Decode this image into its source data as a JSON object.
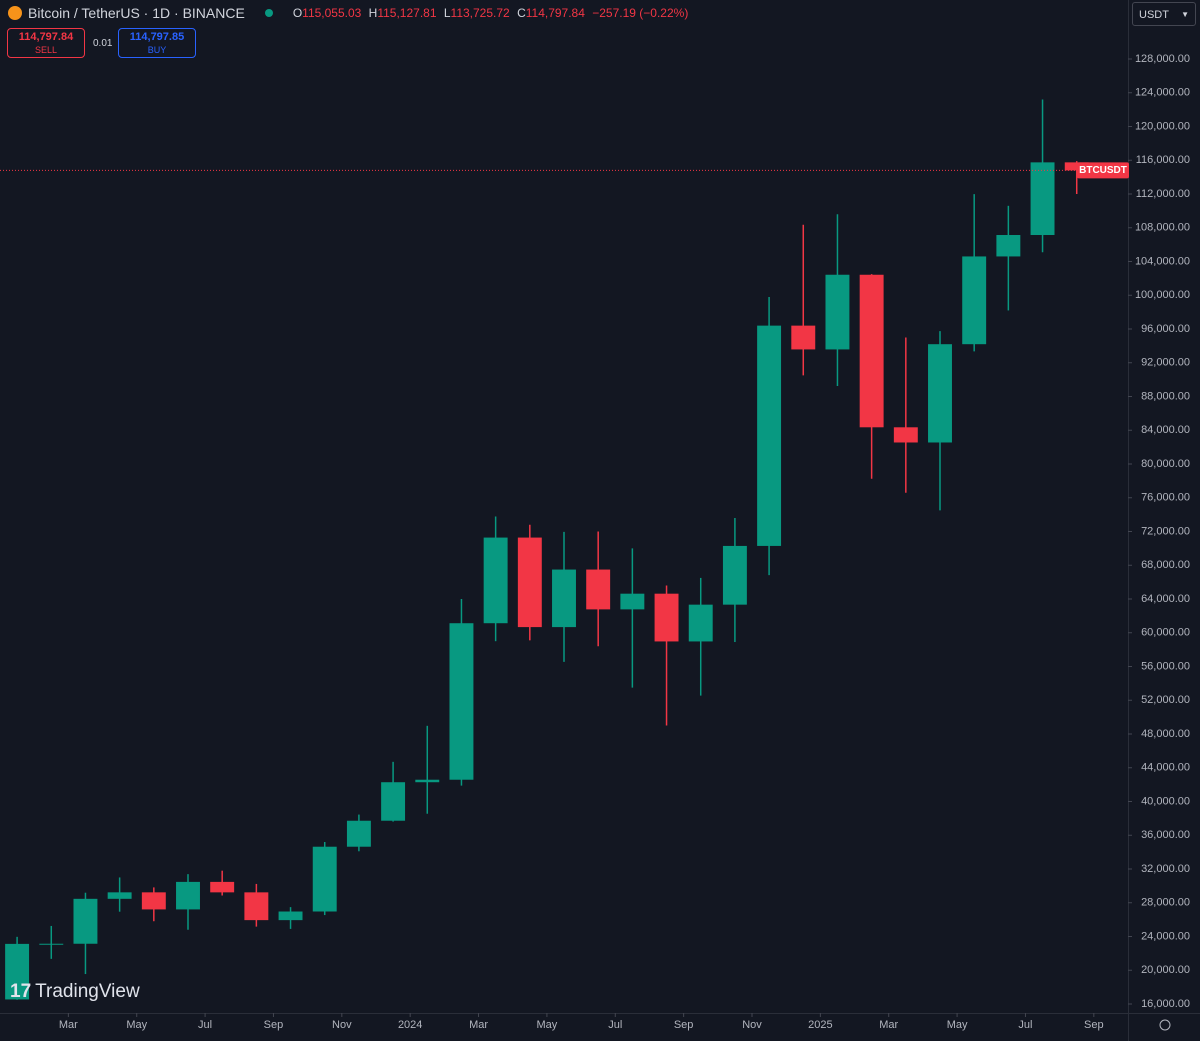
{
  "header": {
    "symbol": "Bitcoin / TetherUS · 1D · BINANCE",
    "ohlc": [
      {
        "label": "O",
        "value": "115,055.03"
      },
      {
        "label": "H",
        "value": "115,127.81"
      },
      {
        "label": "L",
        "value": "113,725.72"
      },
      {
        "label": "C",
        "value": "114,797.84"
      }
    ],
    "change": "−257.19 (−0.22%)",
    "sell_price": "114,797.84",
    "sell_label": "SELL",
    "quantity": "0.01",
    "buy_price": "114,797.85",
    "buy_label": "BUY",
    "currency": "USDT",
    "logo": "TradingView"
  },
  "chart_data": {
    "type": "candlestick",
    "x": [
      "2023-01",
      "2023-02",
      "2023-03",
      "2023-04",
      "2023-05",
      "2023-06",
      "2023-07",
      "2023-08",
      "2023-09",
      "2023-10",
      "2023-11",
      "2023-12",
      "2024-01",
      "2024-02",
      "2024-03",
      "2024-04",
      "2024-05",
      "2024-06",
      "2024-07",
      "2024-08",
      "2024-09",
      "2024-10",
      "2024-11",
      "2024-12",
      "2025-01",
      "2025-02",
      "2025-03",
      "2025-04",
      "2025-05",
      "2025-06",
      "2025-07",
      "2025-08"
    ],
    "open": [
      16540,
      23125,
      23141,
      28465,
      29233,
      27210,
      30472,
      29232,
      25940,
      26962,
      34640,
      37720,
      42284,
      42580,
      61130,
      71280,
      60670,
      67490,
      62770,
      64630,
      58970,
      63330,
      70290,
      96400,
      93580,
      102430,
      84350,
      82550,
      94200,
      104600,
      107140,
      115750
    ],
    "high": [
      23960,
      25250,
      29190,
      31000,
      29820,
      31390,
      31800,
      30230,
      27480,
      35200,
      38450,
      44700,
      48970,
      64000,
      73780,
      72800,
      71950,
      72000,
      70000,
      65600,
      66500,
      73600,
      99800,
      108350,
      109600,
      102500,
      95000,
      95750,
      111980,
      110600,
      123200,
      115900
    ],
    "low": [
      16500,
      21350,
      19550,
      26940,
      25810,
      24800,
      28860,
      25170,
      24900,
      26540,
      34100,
      37620,
      38550,
      41880,
      59000,
      59100,
      56550,
      58400,
      53500,
      49000,
      52550,
      58900,
      66830,
      90500,
      89250,
      78250,
      76600,
      74500,
      93350,
      98200,
      105100,
      112000
    ],
    "close": [
      23125,
      23141,
      28465,
      29233,
      27210,
      30472,
      29232,
      25940,
      26962,
      34640,
      37720,
      42284,
      42580,
      61130,
      71280,
      60670,
      67490,
      62770,
      64630,
      58970,
      63330,
      70290,
      96400,
      93580,
      102430,
      84350,
      82550,
      94200,
      104600,
      107140,
      115750,
      114797.84
    ],
    "up_color": "#089981",
    "down_color": "#f23645",
    "last_price": 114797.84,
    "last_label": "BTCUSDT",
    "xlim": [
      "2023-01",
      "2025-10"
    ],
    "xticks": [
      {
        "value": "2023-03",
        "label": "Mar"
      },
      {
        "value": "2023-05",
        "label": "May"
      },
      {
        "value": "2023-07",
        "label": "Jul"
      },
      {
        "value": "2023-09",
        "label": "Sep"
      },
      {
        "value": "2023-11",
        "label": "Nov"
      },
      {
        "value": "2024-01",
        "label": "2024"
      },
      {
        "value": "2024-03",
        "label": "Mar"
      },
      {
        "value": "2024-05",
        "label": "May"
      },
      {
        "value": "2024-07",
        "label": "Jul"
      },
      {
        "value": "2024-09",
        "label": "Sep"
      },
      {
        "value": "2024-11",
        "label": "Nov"
      },
      {
        "value": "2025-01",
        "label": "2025"
      },
      {
        "value": "2025-03",
        "label": "Mar"
      },
      {
        "value": "2025-05",
        "label": "May"
      },
      {
        "value": "2025-07",
        "label": "Jul"
      },
      {
        "value": "2025-09",
        "label": "Sep"
      }
    ],
    "ylim": [
      14933,
      134993
    ],
    "yticks": [
      {
        "value": 16000,
        "label": "16,000.00"
      },
      {
        "value": 20000,
        "label": "20,000.00"
      },
      {
        "value": 24000,
        "label": "24,000.00"
      },
      {
        "value": 28000,
        "label": "28,000.00"
      },
      {
        "value": 32000,
        "label": "32,000.00"
      },
      {
        "value": 36000,
        "label": "36,000.00"
      },
      {
        "value": 40000,
        "label": "40,000.00"
      },
      {
        "value": 44000,
        "label": "44,000.00"
      },
      {
        "value": 48000,
        "label": "48,000.00"
      },
      {
        "value": 52000,
        "label": "52,000.00"
      },
      {
        "value": 56000,
        "label": "56,000.00"
      },
      {
        "value": 60000,
        "label": "60,000.00"
      },
      {
        "value": 64000,
        "label": "64,000.00"
      },
      {
        "value": 68000,
        "label": "68,000.00"
      },
      {
        "value": 72000,
        "label": "72,000.00"
      },
      {
        "value": 76000,
        "label": "76,000.00"
      },
      {
        "value": 80000,
        "label": "80,000.00"
      },
      {
        "value": 84000,
        "label": "84,000.00"
      },
      {
        "value": 88000,
        "label": "88,000.00"
      },
      {
        "value": 92000,
        "label": "92,000.00"
      },
      {
        "value": 96000,
        "label": "96,000.00"
      },
      {
        "value": 100000,
        "label": "100,000.00"
      },
      {
        "value": 104000,
        "label": "104,000.00"
      },
      {
        "value": 108000,
        "label": "108,000.00"
      },
      {
        "value": 112000,
        "label": "112,000.00"
      },
      {
        "value": 116000,
        "label": "116,000.00"
      },
      {
        "value": 120000,
        "label": "120,000.00"
      },
      {
        "value": 124000,
        "label": "124,000.00"
      },
      {
        "value": 128000,
        "label": "128,000.00"
      }
    ]
  }
}
